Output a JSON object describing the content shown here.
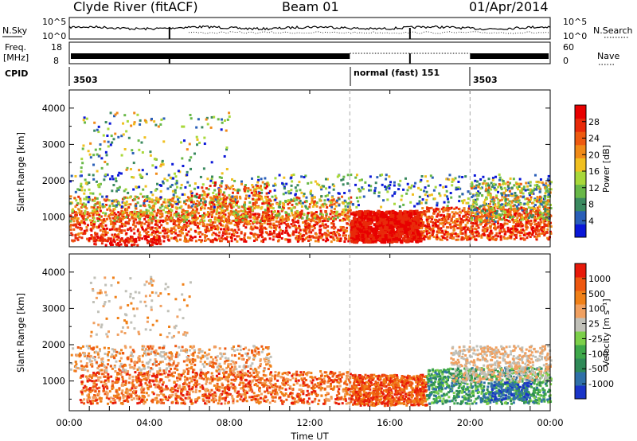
{
  "header": {
    "station": "Clyde River (fitACF)",
    "beam": "Beam 01",
    "date": "01/Apr/2014"
  },
  "top_panels": {
    "nsky_label": "N.Sky",
    "nsky_tick_hi": "10^5",
    "nsky_tick_lo": "10^0",
    "nsearch_label": "N.Search",
    "nsearch_tick_hi": "10^5",
    "nsearch_tick_lo": "10^0",
    "freq_label_1": "Freq.",
    "freq_label_2": "[MHz]",
    "freq_tick_hi": "18",
    "freq_tick_lo": "8",
    "nave_label": "Nave",
    "nave_tick_hi": "60",
    "nave_tick_lo": "0",
    "cpid_label": "CPID",
    "cpid_segments": [
      {
        "label": "3503",
        "start_hour": 0
      },
      {
        "label": "normal (fast) 151",
        "start_hour": 14
      },
      {
        "label": "3503",
        "start_hour": 20
      }
    ]
  },
  "chart_data": [
    {
      "type": "heatmap",
      "title": "",
      "ylabel": "Slant Range [km]",
      "xlabel": "Time UT",
      "xlim_hours": [
        0,
        24
      ],
      "ylim": [
        180,
        4500
      ],
      "yticks": [
        1000,
        2000,
        3000,
        4000
      ],
      "colorbar": {
        "label": "Power [dB]",
        "range": [
          0,
          32
        ],
        "ticks": [
          "4",
          "8",
          "12",
          "16",
          "20",
          "24",
          "28"
        ],
        "colors": [
          "#0a17d8",
          "#2a5fb8",
          "#3b8a60",
          "#68b848",
          "#a8d83a",
          "#f0c020",
          "#f08a18",
          "#ee5a10",
          "#e82a0a",
          "#e80000"
        ]
      }
    },
    {
      "type": "heatmap",
      "title": "",
      "ylabel": "Slant Range [km]",
      "xlabel": "Time UT",
      "xlim_hours": [
        0,
        24
      ],
      "ylim": [
        180,
        4500
      ],
      "yticks": [
        1000,
        2000,
        3000,
        4000
      ],
      "colorbar": {
        "label": "Velocity [m s⁻¹]",
        "ticks": [
          "1000",
          "500",
          "100",
          "25",
          "-25",
          "-100",
          "-500",
          "-1000"
        ],
        "colors": [
          "#1a35c8",
          "#2f70a8",
          "#2f8a58",
          "#3ea84a",
          "#7cd04a",
          "#c0c0b8",
          "#f0a060",
          "#f08018",
          "#ee5810",
          "#e81a0a"
        ]
      }
    }
  ],
  "x_ticks": [
    "00:00",
    "04:00",
    "08:00",
    "12:00",
    "16:00",
    "20:00",
    "00:00"
  ],
  "x_axis_label": "Time UT"
}
